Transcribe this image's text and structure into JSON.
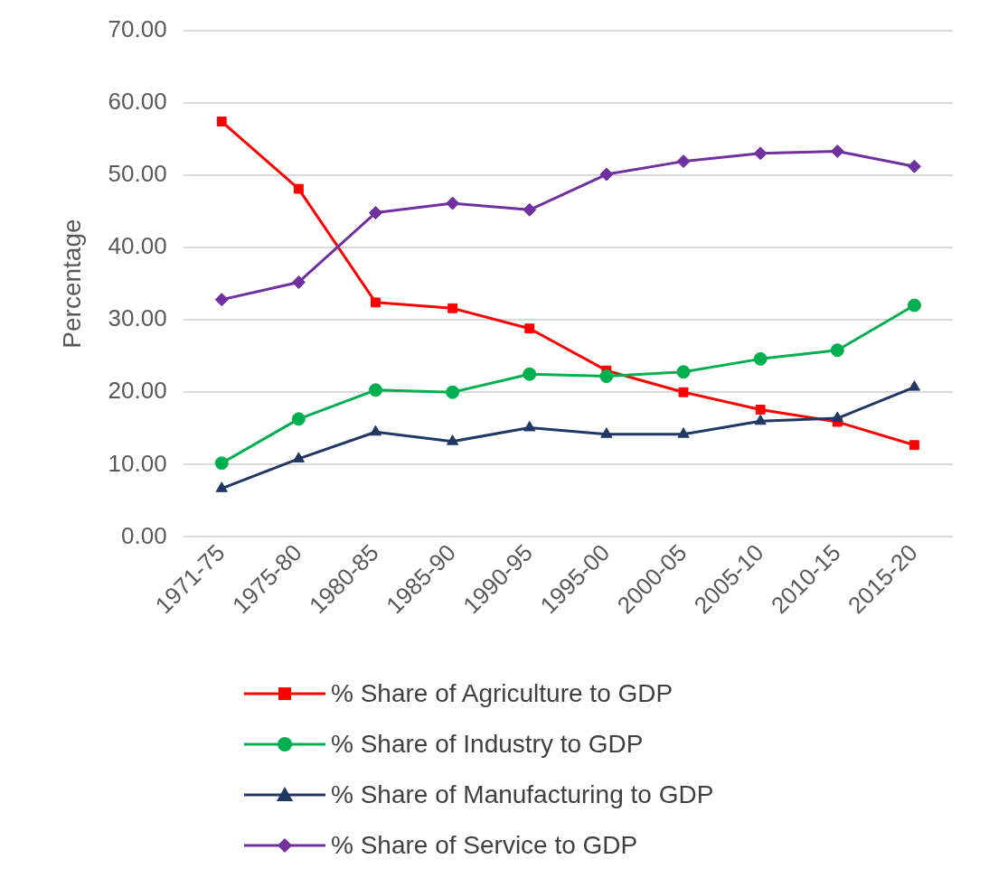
{
  "chart_data": {
    "type": "line",
    "ylabel": "Percentage",
    "categories": [
      "1971-75",
      "1975-80",
      "1980-85",
      "1985-90",
      "1990-95",
      "1995-00",
      "2000-05",
      "2005-10",
      "2010-15",
      "2015-20"
    ],
    "series": [
      {
        "name": "% Share of Agriculture to GDP",
        "color": "#ff0000",
        "marker": "square",
        "values": [
          57.4,
          48.1,
          32.4,
          31.6,
          28.8,
          23.0,
          20.0,
          17.6,
          15.9,
          12.7
        ]
      },
      {
        "name": "% Share of Industry to GDP",
        "color": "#00b050",
        "marker": "circle",
        "values": [
          10.2,
          16.3,
          20.3,
          20.0,
          22.5,
          22.2,
          22.8,
          24.6,
          25.8,
          32.0
        ]
      },
      {
        "name": "% Share of Manufacturing to GDP",
        "color": "#1f3864",
        "marker": "triangle",
        "values": [
          6.7,
          10.8,
          14.5,
          13.2,
          15.1,
          14.2,
          14.2,
          16.0,
          16.4,
          20.7
        ]
      },
      {
        "name": "% Share of Service to GDP",
        "color": "#7030a0",
        "marker": "diamond",
        "values": [
          32.8,
          35.2,
          44.8,
          46.1,
          45.2,
          50.1,
          51.9,
          53.0,
          53.3,
          51.2
        ]
      }
    ],
    "ylim": [
      0,
      70
    ],
    "yticks": [
      {
        "value": 0,
        "label": "0.00"
      },
      {
        "value": 10,
        "label": "10.00"
      },
      {
        "value": 20,
        "label": "20.00"
      },
      {
        "value": 30,
        "label": "30.00"
      },
      {
        "value": 40,
        "label": "40.00"
      },
      {
        "value": 50,
        "label": "50.00"
      },
      {
        "value": 60,
        "label": "60.00"
      },
      {
        "value": 70,
        "label": "70.00"
      }
    ],
    "grid": "y",
    "legend": "bottom",
    "line_style": "solid"
  }
}
